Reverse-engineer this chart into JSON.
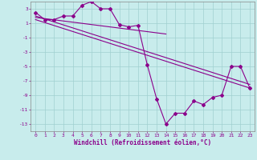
{
  "title": "",
  "xlabel": "Windchill (Refroidissement éolien,°C)",
  "ylabel": "",
  "background_color": "#c8ecec",
  "grid_color": "#a0d0d0",
  "line_color": "#8b008b",
  "xlim": [
    -0.5,
    23.5
  ],
  "ylim": [
    -14,
    4
  ],
  "yticks": [
    3,
    1,
    -1,
    -3,
    -5,
    -7,
    -9,
    -11,
    -13
  ],
  "xticks": [
    0,
    1,
    2,
    3,
    4,
    5,
    6,
    7,
    8,
    9,
    10,
    11,
    12,
    13,
    14,
    15,
    16,
    17,
    18,
    19,
    20,
    21,
    22,
    23
  ],
  "data_x": [
    0,
    1,
    2,
    3,
    4,
    5,
    6,
    7,
    8,
    9,
    10,
    11,
    12,
    13,
    14,
    15,
    16,
    17,
    18,
    19,
    20,
    21,
    22,
    23
  ],
  "data_y": [
    2.5,
    1.5,
    1.5,
    2.0,
    2.0,
    3.5,
    4.0,
    3.0,
    3.0,
    0.8,
    0.5,
    0.7,
    -4.8,
    -9.5,
    -13.0,
    -11.5,
    -11.5,
    -9.8,
    -10.3,
    -9.3,
    -9.0,
    -5.0,
    -5.0,
    -8.0
  ],
  "trend1_x": [
    0,
    23
  ],
  "trend1_y": [
    2.0,
    -7.5
  ],
  "trend2_x": [
    0,
    23
  ],
  "trend2_y": [
    1.5,
    -8.0
  ],
  "trend3_x": [
    0,
    14
  ],
  "trend3_y": [
    1.8,
    -0.5
  ],
  "marker": "D",
  "markersize": 2.0,
  "linewidth": 0.8,
  "tick_fontsize": 4.5,
  "xlabel_fontsize": 5.5
}
